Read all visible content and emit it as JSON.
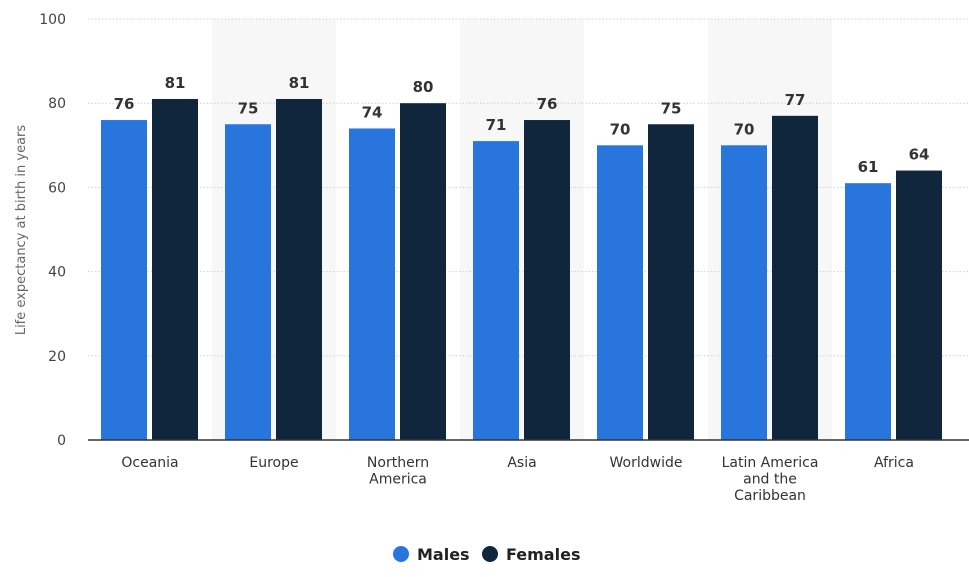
{
  "chart_data": {
    "type": "bar",
    "ylabel": "Life expectancy at birth in years",
    "xlabel": "",
    "ylim": [
      0,
      100
    ],
    "yticks": [
      0,
      20,
      40,
      60,
      80,
      100
    ],
    "grid": true,
    "legend_position": "bottom",
    "categories": [
      [
        "Oceania"
      ],
      [
        "Europe"
      ],
      [
        "Northern",
        "America"
      ],
      [
        "Asia"
      ],
      [
        "Worldwide"
      ],
      [
        "Latin America",
        "and the",
        "Caribbean"
      ],
      [
        "Africa"
      ]
    ],
    "series": [
      {
        "name": "Males",
        "color": "#2876dd",
        "values": [
          76,
          75,
          74,
          71,
          70,
          70,
          61
        ]
      },
      {
        "name": "Females",
        "color": "#10263d",
        "values": [
          81,
          81,
          80,
          76,
          75,
          77,
          64
        ]
      }
    ]
  }
}
